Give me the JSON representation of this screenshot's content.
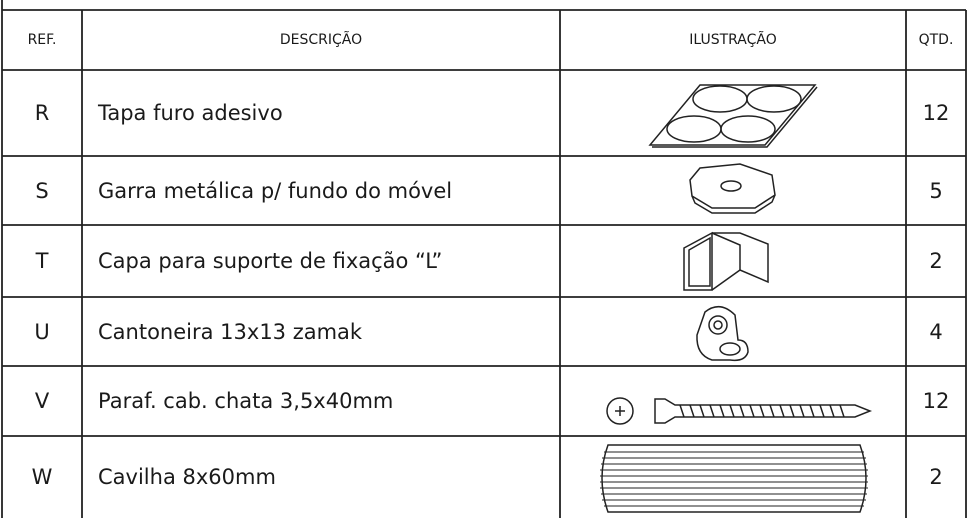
{
  "table": {
    "header": [
      "REF.",
      "DESCRIÇÃO",
      "ILUSTRAÇÃO",
      "QTD."
    ],
    "rows": [
      [
        "R",
        "Tapa furo adesivo",
        12
      ],
      [
        "S",
        "Garra metálica p/ fundo do móvel",
        5
      ],
      [
        "T",
        "Capa para suporte de fixação “L”",
        2
      ],
      [
        "U",
        "Cantoneira 13x13 zamak",
        4
      ],
      [
        "V",
        "Paraf. cab. chata 3,5x40mm",
        12
      ],
      [
        "W",
        "Cavilha 8x60mm",
        2
      ]
    ]
  }
}
